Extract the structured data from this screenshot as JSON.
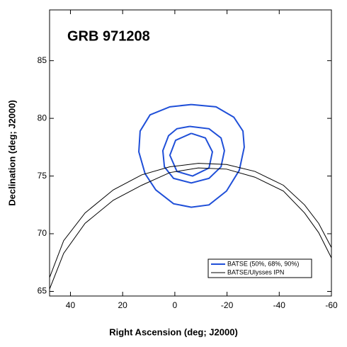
{
  "chart_data": {
    "type": "line",
    "title": "GRB 971208",
    "x_label": "Right Ascension (deg; J2000)",
    "y_label": "Declination (deg; J2000)",
    "xlim": [
      48,
      -60
    ],
    "ylim": [
      64.6,
      89.4
    ],
    "xticks": [
      40,
      20,
      0,
      -20,
      -40,
      -60
    ],
    "yticks": [
      65,
      70,
      75,
      80,
      85
    ],
    "legend": "lower right",
    "series": [
      {
        "name": "BATSE (50%, 68%, 90%)",
        "color": "#1f4fd8",
        "x": [
          -6.3,
          -15.8,
          -22.6,
          -26.1,
          -26.6,
          -24.7,
          -19.8,
          -13.1,
          -6.3,
          0.5,
          7.3,
          11.4,
          13.8,
          13.3,
          9.5,
          1.9,
          -6.3,
          null,
          -5.7,
          -13.1,
          -17.7,
          -19.0,
          -17.7,
          -13.1,
          -6.3,
          0.5,
          4.0,
          4.6,
          2.4,
          -0.8,
          -5.7,
          null,
          -6.3,
          -11.7,
          -14.4,
          -13.1,
          -6.8,
          -0.8,
          1.9,
          -0.3,
          -6.3
        ],
        "y": [
          81.2,
          81.0,
          80.1,
          78.9,
          77.5,
          75.5,
          73.7,
          72.5,
          72.3,
          72.6,
          73.8,
          75.2,
          77.1,
          78.9,
          80.3,
          81.0,
          81.2,
          null,
          79.3,
          79.1,
          78.3,
          77.2,
          75.8,
          74.8,
          74.4,
          74.8,
          75.8,
          77.2,
          78.5,
          79.1,
          79.3,
          null,
          78.7,
          78.3,
          77.1,
          75.7,
          75.0,
          75.4,
          76.8,
          78.1,
          78.7
        ]
      },
      {
        "name": "BATSE/Ulysses IPN",
        "color": "#000000",
        "x": [
          48,
          42.6,
          34.4,
          23.6,
          12.7,
          1.9,
          -9.0,
          -19.8,
          -30.7,
          -41.6,
          -49.7,
          -55.1,
          -60,
          null,
          48,
          42.6,
          34.4,
          23.6,
          12.7,
          1.9,
          -9.0,
          -19.8,
          -30.7,
          -41.6,
          -49.7,
          -55.1,
          -60
        ],
        "y": [
          66.2,
          69.4,
          71.8,
          73.8,
          75.1,
          75.8,
          76.1,
          76.0,
          75.4,
          74.2,
          72.5,
          70.9,
          68.8,
          null,
          65.2,
          68.3,
          70.9,
          72.9,
          74.2,
          75.3,
          75.7,
          75.6,
          74.9,
          73.7,
          71.8,
          70.1,
          67.9
        ]
      }
    ]
  }
}
